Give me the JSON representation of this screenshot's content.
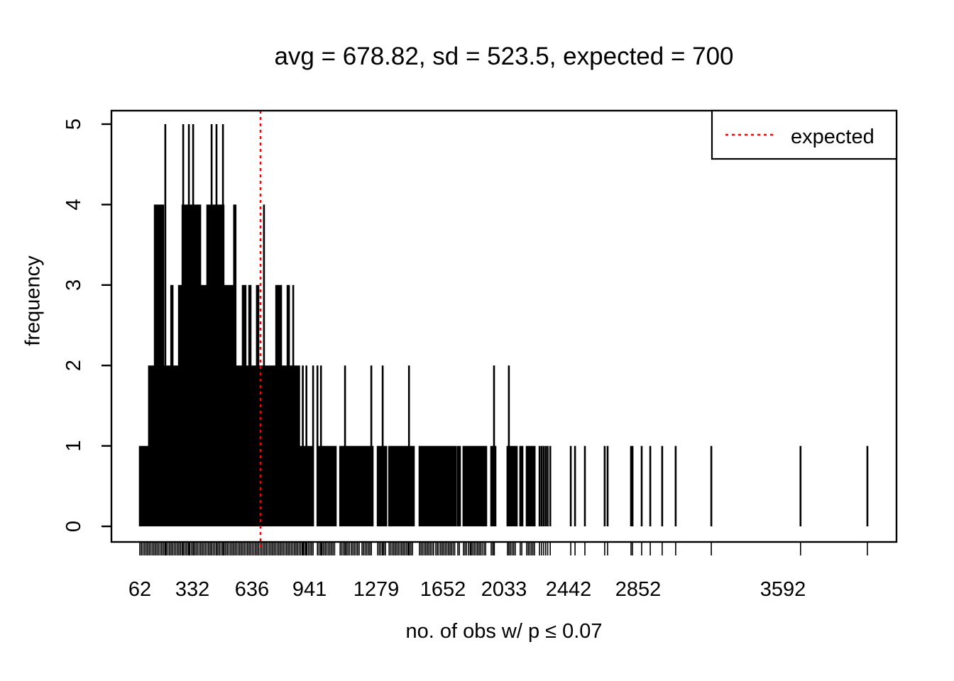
{
  "colors": {
    "background": "#ffffff",
    "foreground": "#000000",
    "accent_red": "#ff0000"
  },
  "chart_data": {
    "type": "bar",
    "style": "spike-histogram (R plot type='h' of a frequency table)",
    "title": "avg = 678.82, sd = 523.5, expected = 700",
    "xlabel": "no. of obs w/ p ≤ 0.07",
    "ylabel": "frequency",
    "stats": {
      "avg": 678.82,
      "sd": 523.5,
      "expected": 700
    },
    "ylim": [
      0,
      5
    ],
    "y_ticks": [
      "0",
      "1",
      "2",
      "3",
      "4",
      "5"
    ],
    "x_tick_values": [
      62,
      332,
      636,
      941,
      1279,
      1652,
      2033,
      2442,
      2852,
      3592
    ],
    "x_range_displayed": [
      62,
      4080
    ],
    "grid": "off",
    "legend": {
      "label": "expected",
      "line_color": "#ff0000",
      "line_style": "dashed",
      "position": "topright"
    },
    "expected_line": {
      "x": 700,
      "color": "#ff0000",
      "style": "dashed"
    },
    "axis_anchors": {
      "values": [
        62,
        332,
        636,
        700,
        941,
        1279,
        1652,
        2033,
        2442,
        2852,
        3592,
        4080
      ],
      "fractions": [
        0.0362,
        0.1031,
        0.179,
        0.1899,
        0.2523,
        0.3373,
        0.4223,
        0.5,
        0.5823,
        0.6709,
        0.8553,
        0.9629
      ]
    },
    "coverage_runs": {
      "note": "continuous black coverage up to given frequency level, in x data units",
      "h1": [
        [
          62,
          959
        ],
        [
          981,
          1074
        ],
        [
          1096,
          1146
        ],
        [
          1153,
          1200
        ],
        [
          1207,
          1261
        ],
        [
          1287,
          1335
        ],
        [
          1351,
          1489
        ],
        [
          1521,
          1603
        ],
        [
          1612,
          1634
        ],
        [
          1639,
          1732
        ],
        [
          1745,
          1758
        ],
        [
          1780,
          1803
        ],
        [
          1812,
          1825
        ],
        [
          1829,
          1869
        ],
        [
          1878,
          1900
        ],
        [
          1909,
          1922
        ],
        [
          1953,
          1980
        ],
        [
          2055,
          2114
        ],
        [
          2136,
          2150
        ],
        [
          2177,
          2227
        ]
      ],
      "h2": [
        [
          109,
          545
        ],
        [
          556,
          585
        ],
        [
          607,
          618
        ],
        [
          632,
          668
        ],
        [
          689,
          714
        ],
        [
          721,
          773
        ],
        [
          805,
          829
        ],
        [
          843,
          857
        ],
        [
          864,
          886
        ]
      ],
      "h3": [
        [
          223,
          230
        ],
        [
          263,
          278
        ],
        [
          375,
          404
        ],
        [
          495,
          542
        ],
        [
          589,
          603
        ],
        [
          622,
          629
        ],
        [
          673,
          684
        ],
        [
          777,
          801
        ],
        [
          833,
          840
        ],
        [
          861,
          861
        ]
      ],
      "h4": [
        [
          139,
          182
        ],
        [
          281,
          372
        ],
        [
          408,
          491
        ],
        [
          545,
          552
        ],
        [
          717,
          717
        ]
      ]
    },
    "spikes": [
      [
        193,
        5
      ],
      [
        285,
        5
      ],
      [
        314,
        5
      ],
      [
        336,
        5
      ],
      [
        430,
        5
      ],
      [
        455,
        5
      ],
      [
        488,
        5
      ],
      [
        890,
        2
      ],
      [
        908,
        2
      ],
      [
        926,
        2
      ],
      [
        959,
        2
      ],
      [
        981,
        2
      ],
      [
        999,
        2
      ],
      [
        1121,
        2
      ],
      [
        1254,
        2
      ],
      [
        1315,
        2
      ],
      [
        1462,
        2
      ],
      [
        1971,
        2
      ],
      [
        2064,
        2
      ],
      [
        2258,
        1
      ],
      [
        2271,
        1
      ],
      [
        2284,
        1
      ],
      [
        2297,
        1
      ],
      [
        2310,
        1
      ],
      [
        2326,
        1
      ],
      [
        2455,
        1
      ],
      [
        2480,
        1
      ],
      [
        2538,
        1
      ],
      [
        2655,
        1
      ],
      [
        2672,
        1
      ],
      [
        2810,
        1
      ],
      [
        2819,
        1
      ],
      [
        2870,
        1
      ],
      [
        2914,
        1
      ],
      [
        2975,
        1
      ],
      [
        3044,
        1
      ],
      [
        3226,
        1
      ],
      [
        3694,
        1
      ],
      [
        4080,
        1
      ]
    ]
  }
}
